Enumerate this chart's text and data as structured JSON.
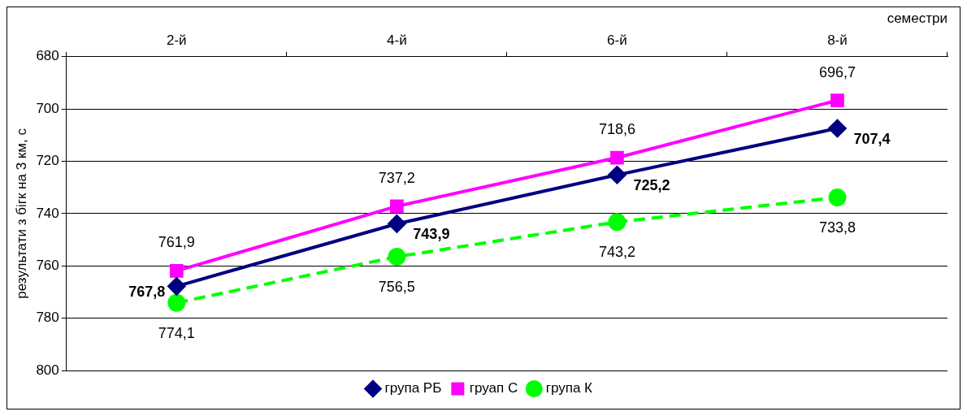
{
  "chart_data": {
    "type": "line",
    "xlabel": "семестри",
    "ylabel": "результати з бігк на 3 км, с",
    "categories": [
      "2-й",
      "4-й",
      "6-й",
      "8-й"
    ],
    "series": [
      {
        "name": "група РБ",
        "color": "#000080",
        "marker": "diamond",
        "line_style": "solid",
        "values": [
          767.8,
          743.9,
          725.2,
          707.4
        ],
        "value_labels": [
          "767,8",
          "743,9",
          "725,2",
          "707,4"
        ]
      },
      {
        "name": "груап С",
        "color": "#ff00ff",
        "marker": "square",
        "line_style": "solid",
        "values": [
          761.9,
          737.2,
          718.6,
          696.7
        ],
        "value_labels": [
          "761,9",
          "737,2",
          "718,6",
          "696,7"
        ]
      },
      {
        "name": "група К",
        "color": "#00ff00",
        "marker": "circle",
        "line_style": "dashed",
        "values": [
          774.1,
          756.5,
          743.2,
          733.8
        ],
        "value_labels": [
          "774,1",
          "756,5",
          "743,2",
          "733,8"
        ]
      }
    ],
    "ylim": [
      800,
      680
    ],
    "yticks": [
      680,
      700,
      720,
      740,
      760,
      780,
      800
    ],
    "grid": "y",
    "legend": "bottom"
  }
}
